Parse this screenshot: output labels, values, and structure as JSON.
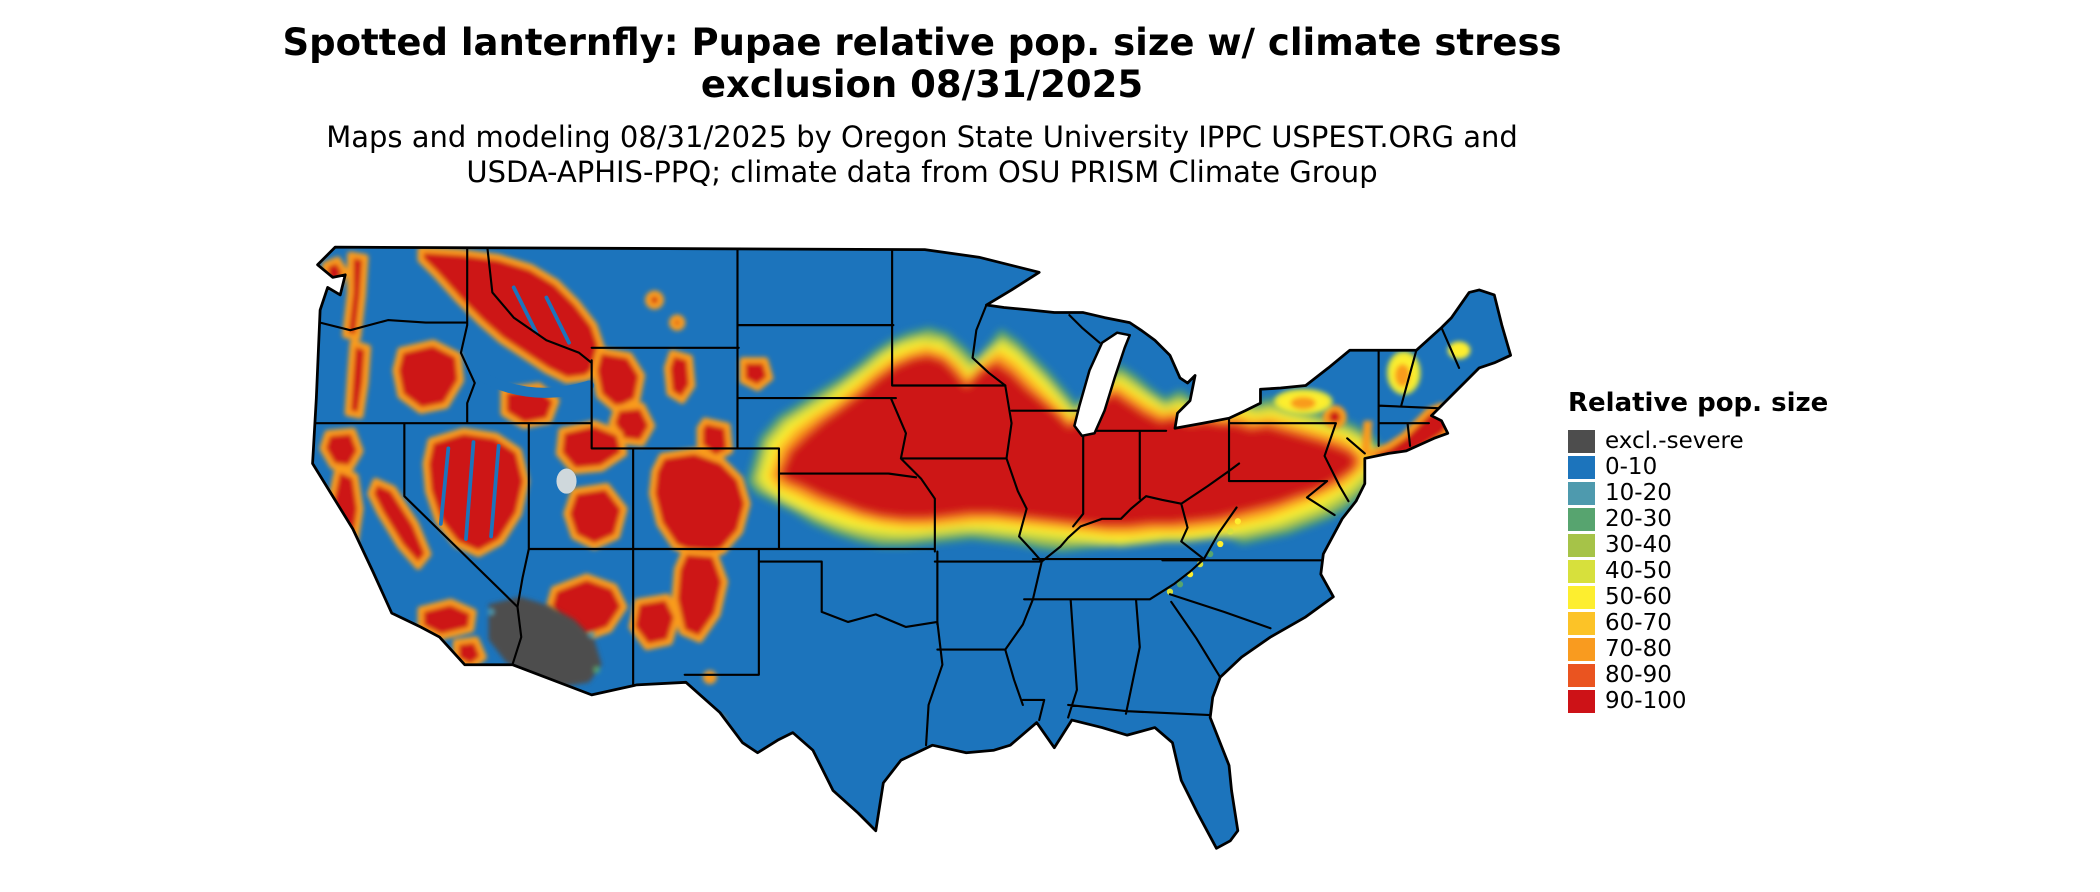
{
  "title": {
    "line1": "Spotted lanternfly: Pupae relative pop. size w/ climate stress",
    "line2": "exclusion 08/31/2025"
  },
  "subtitle": {
    "line1": "Maps and modeling 08/31/2025 by Oregon State University IPPC USPEST.ORG and",
    "line2": "USDA-APHIS-PPQ; climate data from OSU PRISM Climate Group"
  },
  "legend": {
    "title": "Relative pop. size",
    "items": [
      {
        "label": "excl.-severe",
        "color": "#4d4d4d"
      },
      {
        "label": "0-10",
        "color": "#1c74bc"
      },
      {
        "label": "10-20",
        "color": "#4e9aae"
      },
      {
        "label": "20-30",
        "color": "#57a46f"
      },
      {
        "label": "30-40",
        "color": "#a6c348"
      },
      {
        "label": "40-50",
        "color": "#d7e03c"
      },
      {
        "label": "50-60",
        "color": "#fdee2f"
      },
      {
        "label": "60-70",
        "color": "#fcc327"
      },
      {
        "label": "70-80",
        "color": "#f99b1f"
      },
      {
        "label": "80-90",
        "color": "#ea5420"
      },
      {
        "label": "90-100",
        "color": "#cd1217"
      }
    ]
  },
  "map": {
    "background": "#ffffff",
    "base_fill": "#1c74bc",
    "state_border_color": "#000000",
    "exclusion_color": "#4d4d4d",
    "high_value_color": "#cd1217"
  }
}
